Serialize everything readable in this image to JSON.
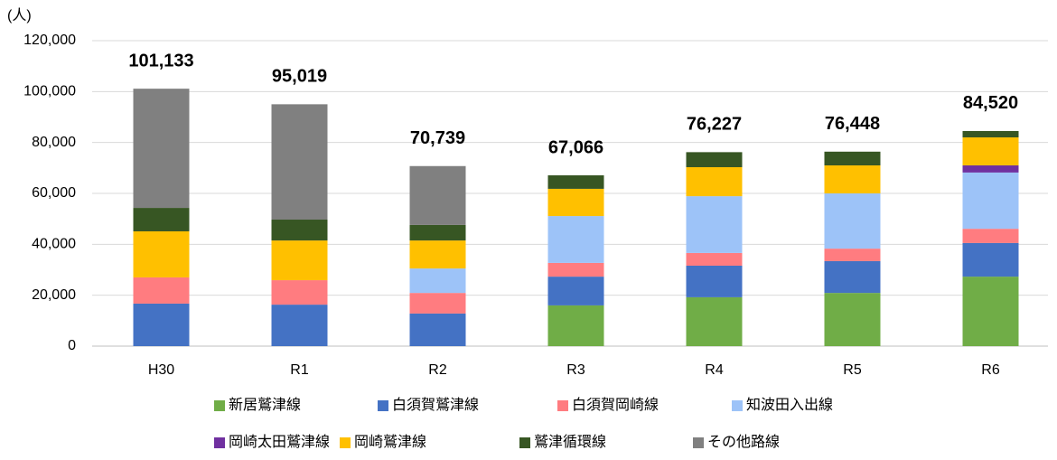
{
  "chart_data": {
    "type": "stacked_bar",
    "unit_label": "(人)",
    "categories": [
      "H30",
      "R1",
      "R2",
      "R3",
      "R4",
      "R5",
      "R6"
    ],
    "series": [
      {
        "name": "新居鷲津線",
        "color": "#70ad47",
        "values": [
          null,
          null,
          null,
          16000,
          19200,
          20900,
          27300
        ]
      },
      {
        "name": "白須賀鷲津線",
        "color": "#4472c4",
        "values": [
          16700,
          16300,
          12800,
          11300,
          12400,
          12500,
          13200
        ]
      },
      {
        "name": "白須賀岡崎線",
        "color": "#ff7c80",
        "values": [
          10300,
          9600,
          8100,
          5400,
          5000,
          4900,
          5600
        ]
      },
      {
        "name": "知波田入出線",
        "color": "#9dc3f8",
        "values": [
          null,
          null,
          9600,
          18400,
          22300,
          21700,
          22100
        ]
      },
      {
        "name": "岡崎太田鷲津線",
        "color": "#7030a0",
        "values": [
          null,
          null,
          null,
          null,
          null,
          null,
          2800
        ]
      },
      {
        "name": "岡崎鷲津線",
        "color": "#ffc000",
        "values": [
          18100,
          15600,
          11000,
          10700,
          11400,
          11000,
          11000
        ]
      },
      {
        "name": "鷲津循環線",
        "color": "#375623",
        "values": [
          9200,
          8200,
          6100,
          5300,
          5900,
          5400,
          2500
        ]
      },
      {
        "name": "その他路線",
        "color": "#808080",
        "values": [
          46833,
          45319,
          23139,
          null,
          null,
          null,
          null
        ]
      }
    ],
    "totals": [
      101133,
      95019,
      70739,
      67066,
      76227,
      76448,
      84520
    ],
    "total_labels": [
      "101,133",
      "95,019",
      "70,739",
      "67,066",
      "76,227",
      "76,448",
      "84,520"
    ],
    "ylim": [
      0,
      120000
    ],
    "yticks": [
      0,
      {
        "value": 20000,
        "label": "20,000"
      },
      {
        "value": 40000,
        "label": "40,000"
      },
      {
        "value": 60000,
        "label": "60,000"
      },
      {
        "value": 80000,
        "label": "80,000"
      },
      {
        "value": 100000,
        "label": "100,000"
      },
      {
        "value": 120000,
        "label": "120,000"
      }
    ],
    "grid": true
  }
}
